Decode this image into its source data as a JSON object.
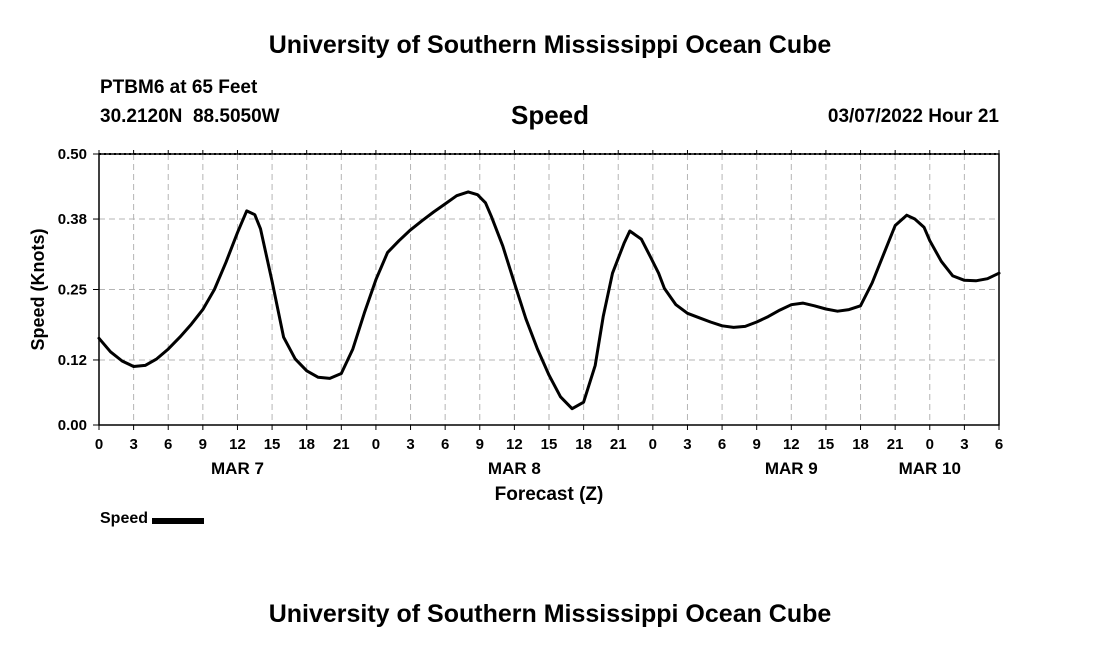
{
  "header": {
    "title": "University of Southern Mississippi Ocean Cube",
    "station": "PTBM6 at 65 Feet",
    "latitude": "30.2120N",
    "longitude": "88.5050W",
    "variable": "Speed",
    "datetime": "03/07/2022 Hour 21"
  },
  "footer": {
    "title": "University of Southern Mississippi Ocean Cube"
  },
  "legend": {
    "label": "Speed",
    "color": "#000000"
  },
  "chart_data": {
    "type": "line",
    "title": "Speed",
    "xlabel": "Forecast (Z)",
    "ylabel": "Speed (Knots)",
    "xlim": [
      0,
      78
    ],
    "ylim": [
      0,
      0.5
    ],
    "grid": true,
    "yticks": [
      0.0,
      0.12,
      0.25,
      0.38,
      0.5
    ],
    "ytick_labels": [
      "0.00",
      "0.12",
      "0.25",
      "0.38",
      "0.50"
    ],
    "xtick_labels": [
      "0",
      "3",
      "6",
      "9",
      "12",
      "15",
      "18",
      "21",
      "0",
      "3",
      "6",
      "9",
      "12",
      "15",
      "18",
      "21",
      "0",
      "3",
      "6",
      "9",
      "12",
      "15",
      "18",
      "21",
      "0",
      "3",
      "6"
    ],
    "date_labels": [
      {
        "label": "MAR 7",
        "at_hour": 12
      },
      {
        "label": "MAR 8",
        "at_hour": 36
      },
      {
        "label": "MAR 9",
        "at_hour": 60
      },
      {
        "label": "MAR 10",
        "at_hour": 72
      }
    ],
    "series": [
      {
        "name": "Speed",
        "color": "#000000",
        "x": [
          0,
          1,
          2,
          3,
          4,
          5,
          6,
          7,
          8,
          9,
          10,
          11,
          12,
          12.8,
          13.5,
          14,
          15,
          16,
          17,
          18,
          19,
          20,
          21,
          22,
          23,
          24,
          25,
          26,
          27,
          28,
          29,
          30,
          31,
          32,
          32.8,
          33.5,
          34,
          35,
          36,
          37,
          38,
          39,
          40,
          41,
          42,
          43,
          43.7,
          44.5,
          45.5,
          46,
          47,
          47.8,
          48.5,
          49,
          50,
          51,
          52,
          53,
          54,
          55,
          56,
          57,
          58,
          59,
          60,
          61,
          62,
          63,
          64,
          65,
          66,
          67,
          68,
          69,
          70,
          70.7,
          71.5,
          72,
          73,
          74,
          75,
          76,
          77,
          78
        ],
        "values": [
          0.16,
          0.135,
          0.118,
          0.108,
          0.11,
          0.122,
          0.14,
          0.162,
          0.186,
          0.213,
          0.25,
          0.3,
          0.355,
          0.395,
          0.388,
          0.362,
          0.265,
          0.162,
          0.122,
          0.1,
          0.088,
          0.086,
          0.095,
          0.14,
          0.207,
          0.268,
          0.318,
          0.34,
          0.36,
          0.377,
          0.393,
          0.408,
          0.423,
          0.43,
          0.425,
          0.41,
          0.385,
          0.33,
          0.262,
          0.196,
          0.14,
          0.092,
          0.052,
          0.03,
          0.042,
          0.11,
          0.2,
          0.28,
          0.335,
          0.358,
          0.343,
          0.31,
          0.28,
          0.252,
          0.222,
          0.206,
          0.198,
          0.19,
          0.183,
          0.18,
          0.182,
          0.19,
          0.2,
          0.212,
          0.222,
          0.225,
          0.22,
          0.214,
          0.21,
          0.213,
          0.22,
          0.262,
          0.315,
          0.368,
          0.387,
          0.38,
          0.365,
          0.34,
          0.302,
          0.275,
          0.267,
          0.266,
          0.27,
          0.28
        ]
      }
    ]
  }
}
